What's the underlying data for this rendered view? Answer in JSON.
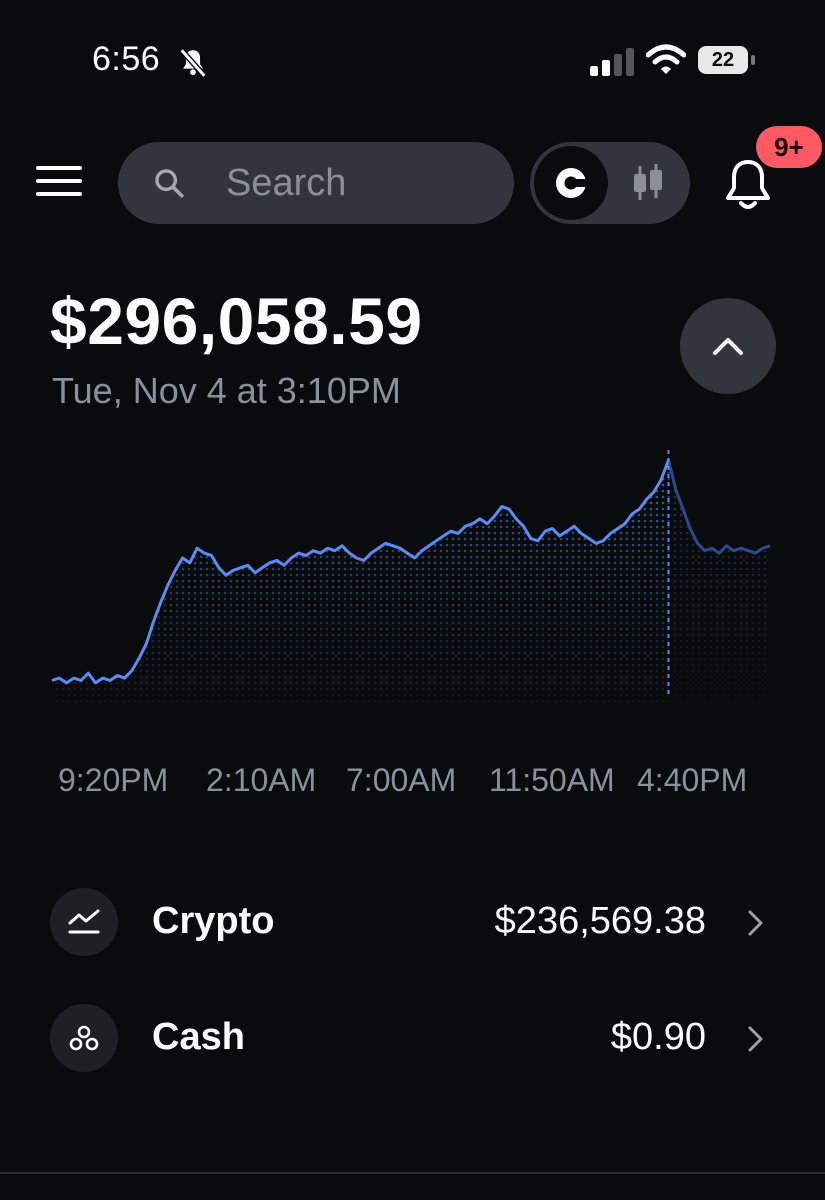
{
  "status_bar": {
    "time": "6:56",
    "battery": "22",
    "icons": [
      "bell-slash-icon",
      "cellular-signal-icon",
      "wifi-icon",
      "battery-icon"
    ]
  },
  "header": {
    "menu_icon": "hamburger-menu-icon",
    "search_placeholder": "Search",
    "view_toggle": {
      "simple_icon": "coinbase-logo-icon",
      "advanced_icon": "candlestick-icon"
    },
    "notifications_icon": "bell-icon",
    "notifications_badge": "9+"
  },
  "portfolio": {
    "balance": "$296,058.59",
    "date": "Tue, Nov 4 at 3:10PM",
    "collapse_icon": "chevron-up-icon"
  },
  "chart_data": {
    "type": "line",
    "x_labels": [
      "9:20PM",
      "2:10AM",
      "7:00AM",
      "11:50AM",
      "4:40PM"
    ],
    "values": [
      10,
      11,
      9,
      11,
      10,
      13,
      9,
      11,
      10,
      12,
      11,
      14,
      19,
      25,
      34,
      42,
      49,
      55,
      60,
      58,
      64,
      62,
      61,
      56,
      53,
      55,
      56,
      57,
      54,
      56,
      58,
      59,
      57,
      60,
      62,
      61,
      63,
      62,
      64,
      63,
      65,
      62,
      60,
      59,
      62,
      64,
      66,
      65,
      64,
      62,
      60,
      63,
      65,
      67,
      69,
      71,
      70,
      73,
      74,
      76,
      74,
      77,
      81,
      80,
      76,
      73,
      68,
      67,
      71,
      72,
      69,
      71,
      73,
      70,
      68,
      66,
      67,
      70,
      72,
      74,
      78,
      80,
      84,
      87,
      92,
      100,
      88,
      80,
      72,
      66,
      63,
      64,
      62,
      65,
      63,
      64,
      63,
      62,
      64,
      65
    ],
    "crosshair_index": 85,
    "line_color": "#5b8cf5",
    "faded_color": "#2b4a8c",
    "grid": false
  },
  "assets": [
    {
      "name": "Crypto",
      "value": "$236,569.38",
      "icon": "trend-line-icon"
    },
    {
      "name": "Cash",
      "value": "$0.90",
      "icon": "coins-icon"
    }
  ],
  "colors": {
    "background": "#0a0b0d",
    "surface": "#32353d",
    "badge": "#ff5a64",
    "muted_text": "#8a919e",
    "accent": "#5b8cf5"
  }
}
